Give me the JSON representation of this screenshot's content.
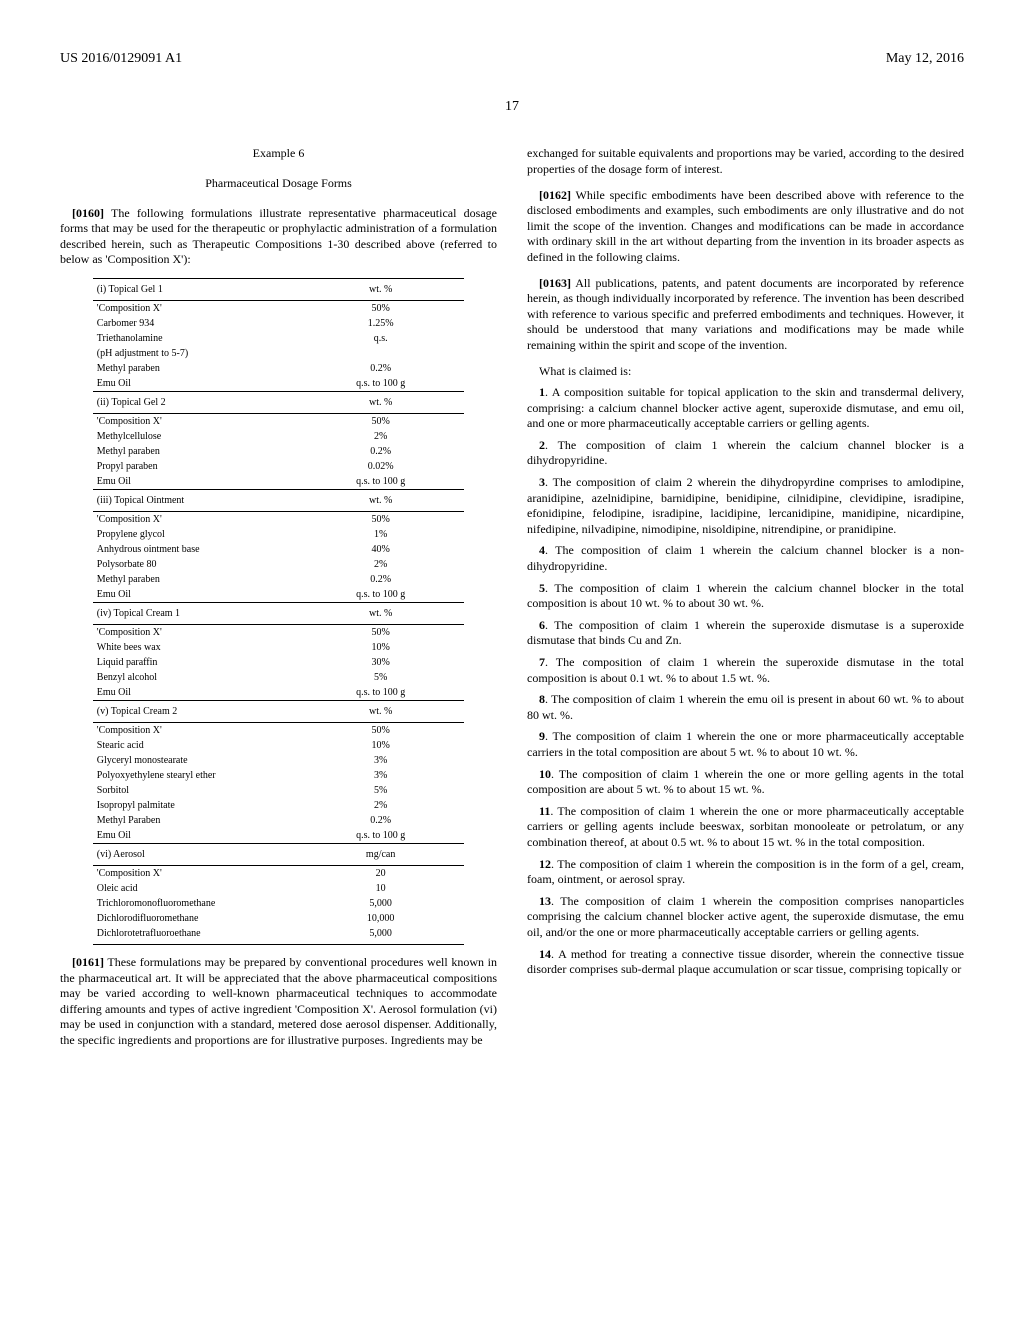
{
  "header": {
    "left": "US 2016/0129091 A1",
    "right": "May 12, 2016"
  },
  "page_number": "17",
  "left_col": {
    "example_title": "Example 6",
    "subtitle": "Pharmaceutical Dosage Forms",
    "para1_num": "[0160]",
    "para1_text": "The following formulations illustrate representative pharmaceutical dosage forms that may be used for the therapeutic or prophylactic administration of a formulation described herein, such as Therapeutic Compositions 1-30 described above (referred to below as 'Composition X'):",
    "tables": [
      {
        "heading": "(i) Topical Gel 1",
        "unit": "wt. %",
        "rows": [
          {
            "name": "'Composition X'",
            "val": "50%"
          },
          {
            "name": "Carbomer 934",
            "val": "1.25%"
          },
          {
            "name": "Triethanolamine",
            "val": "q.s."
          },
          {
            "name": "(pH adjustment to 5-7)",
            "val": ""
          },
          {
            "name": "Methyl paraben",
            "val": "0.2%"
          },
          {
            "name": "Emu Oil",
            "val": "q.s. to 100 g"
          }
        ]
      },
      {
        "heading": "(ii) Topical Gel 2",
        "unit": "wt. %",
        "rows": [
          {
            "name": "'Composition X'",
            "val": "50%"
          },
          {
            "name": "Methylcellulose",
            "val": "2%"
          },
          {
            "name": "Methyl paraben",
            "val": "0.2%"
          },
          {
            "name": "Propyl paraben",
            "val": "0.02%"
          },
          {
            "name": "Emu Oil",
            "val": "q.s. to 100 g"
          }
        ]
      },
      {
        "heading": "(iii) Topical Ointment",
        "unit": "wt. %",
        "rows": [
          {
            "name": "'Composition X'",
            "val": "50%"
          },
          {
            "name": "Propylene glycol",
            "val": "1%"
          },
          {
            "name": "Anhydrous ointment base",
            "val": "40%"
          },
          {
            "name": "Polysorbate 80",
            "val": "2%"
          },
          {
            "name": "Methyl paraben",
            "val": "0.2%"
          },
          {
            "name": "Emu Oil",
            "val": "q.s. to 100 g"
          }
        ]
      },
      {
        "heading": "(iv) Topical Cream 1",
        "unit": "wt. %",
        "rows": [
          {
            "name": "'Composition X'",
            "val": "50%"
          },
          {
            "name": "White bees wax",
            "val": "10%"
          },
          {
            "name": "Liquid paraffin",
            "val": "30%"
          },
          {
            "name": "Benzyl alcohol",
            "val": "5%"
          },
          {
            "name": "Emu Oil",
            "val": "q.s. to 100 g"
          }
        ]
      },
      {
        "heading": "(v) Topical Cream 2",
        "unit": "wt. %",
        "rows": [
          {
            "name": "'Composition X'",
            "val": "50%"
          },
          {
            "name": "Stearic acid",
            "val": "10%"
          },
          {
            "name": "Glyceryl monostearate",
            "val": "3%"
          },
          {
            "name": "Polyoxyethylene stearyl ether",
            "val": "3%"
          },
          {
            "name": "Sorbitol",
            "val": "5%"
          },
          {
            "name": "Isopropyl palmitate",
            "val": "2%"
          },
          {
            "name": "Methyl Paraben",
            "val": "0.2%"
          },
          {
            "name": "Emu Oil",
            "val": "q.s. to 100 g"
          }
        ]
      },
      {
        "heading": "(vi) Aerosol",
        "unit": "mg/can",
        "rows": [
          {
            "name": "'Composition X'",
            "val": "20"
          },
          {
            "name": "Oleic acid",
            "val": "10"
          },
          {
            "name": "Trichloromonofluoromethane",
            "val": "5,000"
          },
          {
            "name": "Dichlorodifluoromethane",
            "val": "10,000"
          },
          {
            "name": "Dichlorotetrafluoroethane",
            "val": "5,000"
          }
        ]
      }
    ],
    "para2_num": "[0161]",
    "para2_text": "These formulations may be prepared by conventional procedures well known in the pharmaceutical art. It will be appreciated that the above pharmaceutical compositions may be varied according to well-known pharmaceutical techniques to accommodate differing amounts and types of active ingredient 'Composition X'. Aerosol formulation (vi) may be used in conjunction with a standard, metered dose aerosol dispenser. Additionally, the specific ingredients and proportions are for illustrative purposes. Ingredients may be"
  },
  "right_col": {
    "para_cont": "exchanged for suitable equivalents and proportions may be varied, according to the desired properties of the dosage form of interest.",
    "para3_num": "[0162]",
    "para3_text": "While specific embodiments have been described above with reference to the disclosed embodiments and examples, such embodiments are only illustrative and do not limit the scope of the invention. Changes and modifications can be made in accordance with ordinary skill in the art without departing from the invention in its broader aspects as defined in the following claims.",
    "para4_num": "[0163]",
    "para4_text": "All publications, patents, and patent documents are incorporated by reference herein, as though individually incorporated by reference. The invention has been described with reference to various specific and preferred embodiments and techniques. However, it should be understood that many variations and modifications may be made while remaining within the spirit and scope of the invention.",
    "what_claimed": "What is claimed is:",
    "claims": [
      {
        "num": "1",
        "text": ". A composition suitable for topical application to the skin and transdermal delivery, comprising: a calcium channel blocker active agent, superoxide dismutase, and emu oil, and one or more pharmaceutically acceptable carriers or gelling agents."
      },
      {
        "num": "2",
        "text": ". The composition of claim 1 wherein the calcium channel blocker is a dihydropyridine."
      },
      {
        "num": "3",
        "text": ". The composition of claim 2 wherein the dihydropyrdine comprises to amlodipine, aranidipine, azelnidipine, barnidipine, benidipine, cilnidipine, clevidipine, isradipine, efonidipine, felodipine, isradipine, lacidipine, lercanidipine, manidipine, nicardipine, nifedipine, nilvadipine, nimodipine, nisoldipine, nitrendipine, or pranidipine."
      },
      {
        "num": "4",
        "text": ". The composition of claim 1 wherein the calcium channel blocker is a non-dihydropyridine."
      },
      {
        "num": "5",
        "text": ". The composition of claim 1 wherein the calcium channel blocker in the total composition is about 10 wt. % to about 30 wt. %."
      },
      {
        "num": "6",
        "text": ". The composition of claim 1 wherein the superoxide dismutase is a superoxide dismutase that binds Cu and Zn."
      },
      {
        "num": "7",
        "text": ". The composition of claim 1 wherein the superoxide dismutase in the total composition is about 0.1 wt. % to about 1.5 wt. %."
      },
      {
        "num": "8",
        "text": ". The composition of claim 1 wherein the emu oil is present in about 60 wt. % to about 80 wt. %."
      },
      {
        "num": "9",
        "text": ". The composition of claim 1 wherein the one or more pharmaceutically acceptable carriers in the total composition are about 5 wt. % to about 10 wt. %."
      },
      {
        "num": "10",
        "text": ". The composition of claim 1 wherein the one or more gelling agents in the total composition are about 5 wt. % to about 15 wt. %."
      },
      {
        "num": "11",
        "text": ". The composition of claim 1 wherein the one or more pharmaceutically acceptable carriers or gelling agents include beeswax, sorbitan monooleate or petrolatum, or any combination thereof, at about 0.5 wt. % to about 15 wt. % in the total composition."
      },
      {
        "num": "12",
        "text": ". The composition of claim 1 wherein the composition is in the form of a gel, cream, foam, ointment, or aerosol spray."
      },
      {
        "num": "13",
        "text": ". The composition of claim 1 wherein the composition comprises nanoparticles comprising the calcium channel blocker active agent, the superoxide dismutase, the emu oil, and/or the one or more pharmaceutically acceptable carriers or gelling agents."
      },
      {
        "num": "14",
        "text": ". A method for treating a connective tissue disorder, wherein the connective tissue disorder comprises sub-dermal plaque accumulation or scar tissue, comprising topically or"
      }
    ]
  }
}
